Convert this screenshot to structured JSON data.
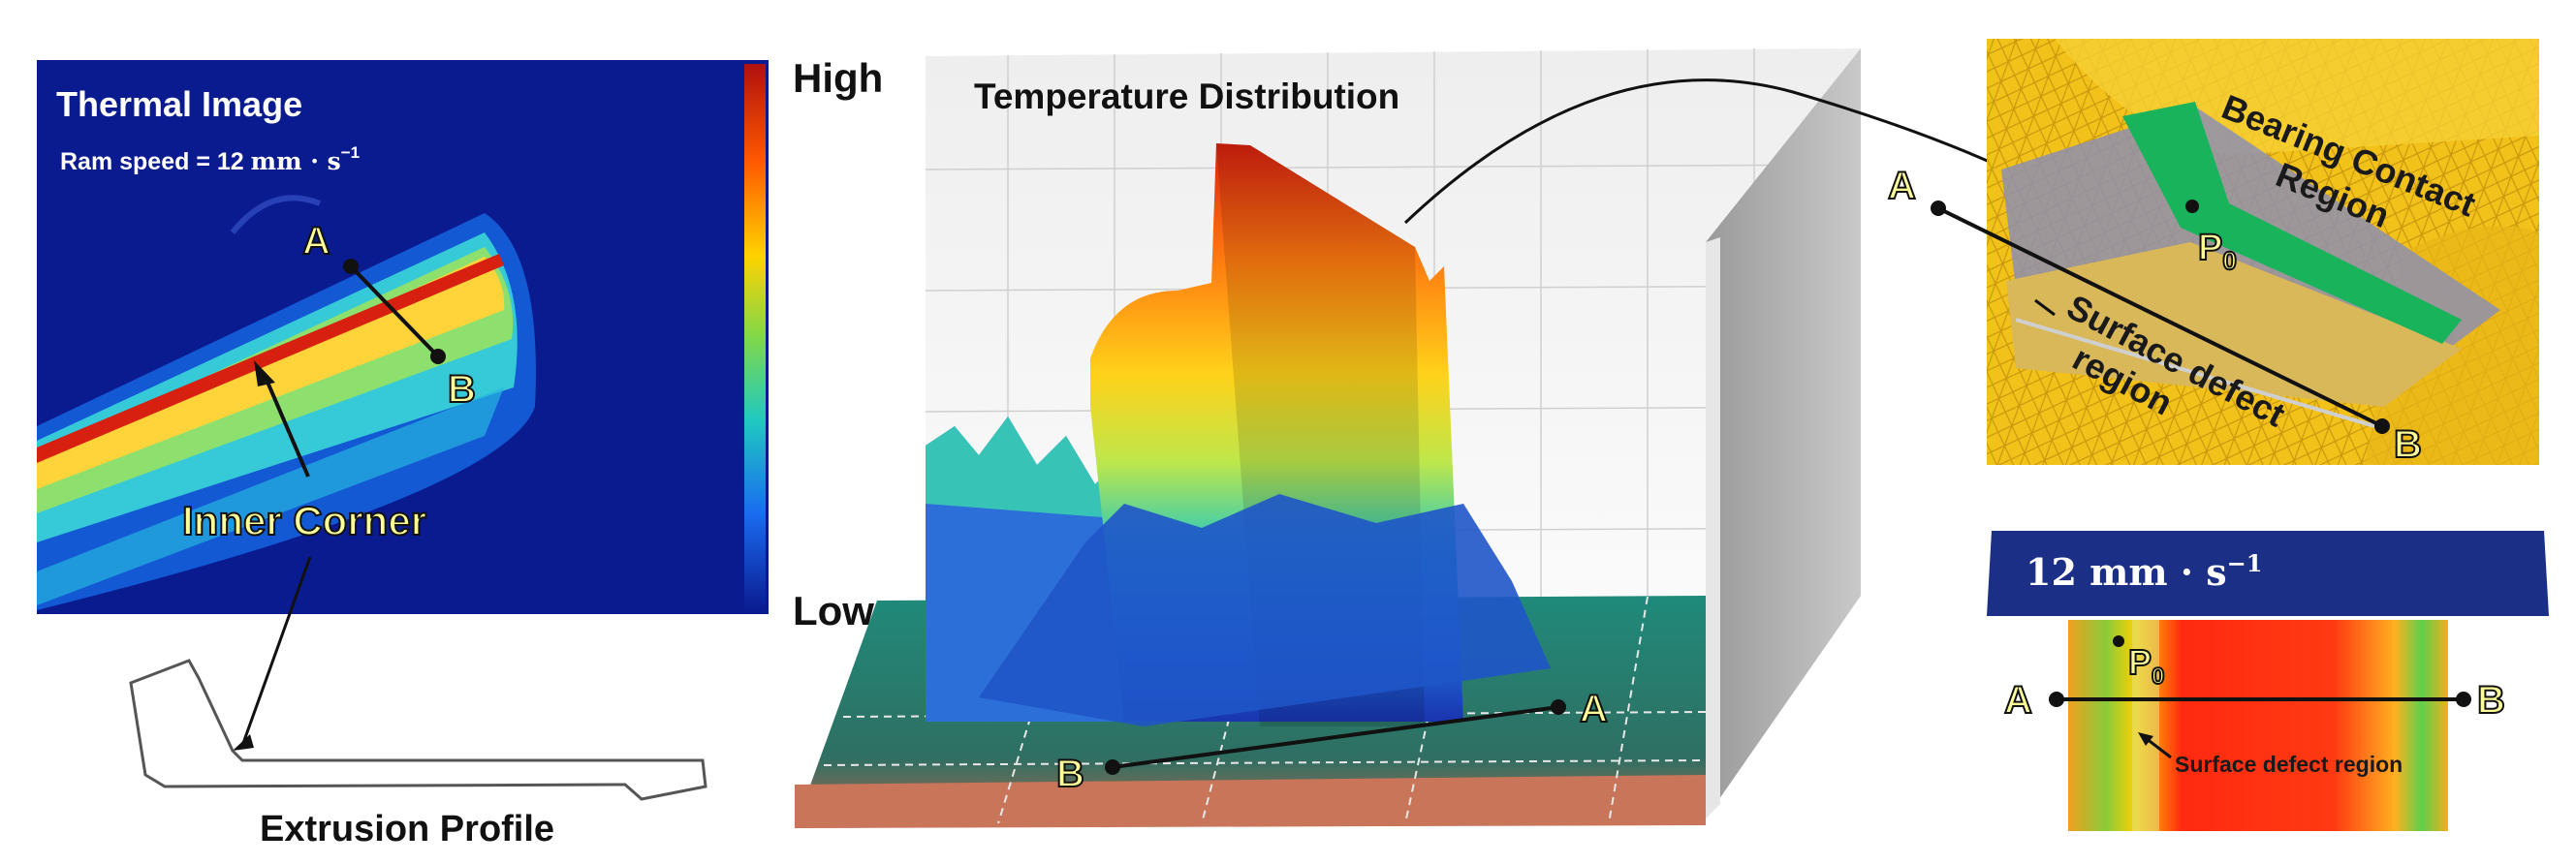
{
  "thermal": {
    "title": "Thermal Image",
    "ram_speed_prefix": "Ram speed = 12 ",
    "ram_speed_unit": "mm · s",
    "ram_speed_exp": "−1",
    "label_a": "A",
    "label_b": "B",
    "inner_corner": "Inner Corner"
  },
  "colorbar": {
    "high": "High",
    "low": "Low"
  },
  "profile": {
    "caption": "Extrusion Profile"
  },
  "distribution": {
    "title": "Temperature Distribution",
    "label_a": "A",
    "label_b": "B"
  },
  "simulation": {
    "label_a": "A",
    "label_b": "B",
    "p0": "P",
    "p0_sub": "0",
    "bearing_line1": "Bearing Contact",
    "bearing_line2": "Region",
    "defect_line1": "Surface defect",
    "defect_line2": "region"
  },
  "section": {
    "speed_value": "12 ",
    "speed_unit": "mm · s",
    "speed_exp": "−1",
    "label_a": "A",
    "label_b": "B",
    "p0": "P",
    "p0_sub": "0",
    "defect_caption": "Surface defect region"
  },
  "colors": {
    "thermal_bg": "#0a1a8f",
    "section_band": "#1b2f86",
    "label_yellow": "#ffff99",
    "annotation_text": "#1a1a1a"
  }
}
